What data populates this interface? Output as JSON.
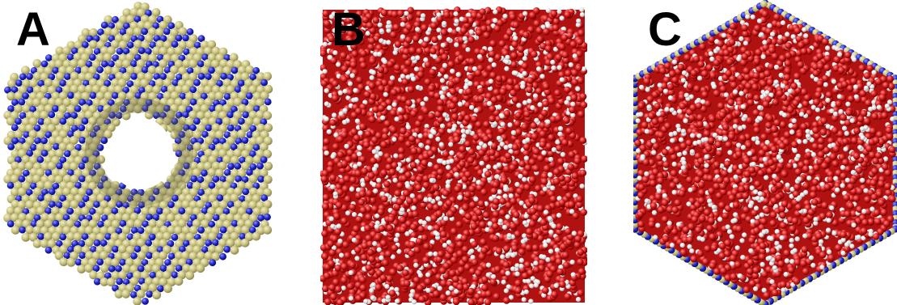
{
  "panels": [
    {
      "label": "A",
      "content": "nanotube-end-view"
    },
    {
      "label": "B",
      "content": "water-box-side-view"
    },
    {
      "label": "C",
      "content": "water-box-end-view"
    }
  ],
  "colors": {
    "boron": "#c8c27e",
    "nitrogen": "#1f24c9",
    "oxygen": "#d11a1a",
    "hydrogen": "#e6e6e6",
    "background": "#ffffff"
  }
}
